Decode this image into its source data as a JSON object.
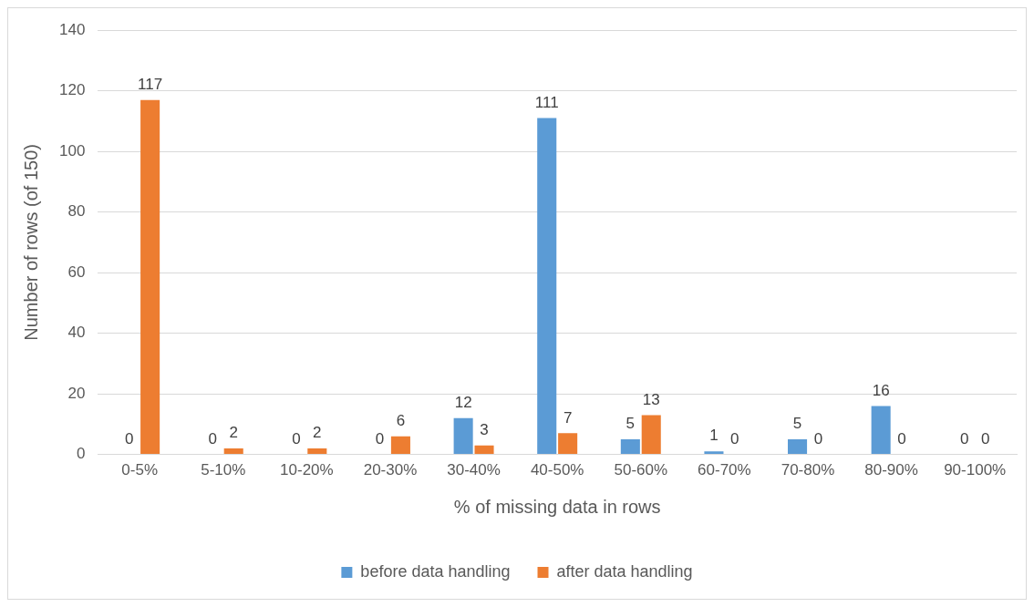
{
  "chart_data": {
    "type": "bar",
    "xlabel": "% of missing data in rows",
    "ylabel": "Number of rows (of 150)",
    "categories": [
      "0-5%",
      "5-10%",
      "10-20%",
      "20-30%",
      "30-40%",
      "40-50%",
      "50-60%",
      "60-70%",
      "70-80%",
      "80-90%",
      "90-100%"
    ],
    "series": [
      {
        "name": "before data handling",
        "color": "#5b9bd5",
        "values": [
          0,
          0,
          0,
          0,
          12,
          111,
          5,
          1,
          5,
          16,
          0
        ]
      },
      {
        "name": "after data handling",
        "color": "#ed7d31",
        "values": [
          117,
          2,
          2,
          6,
          3,
          7,
          13,
          0,
          0,
          0,
          0
        ]
      }
    ],
    "ylim": [
      0,
      140
    ],
    "yticks": [
      0,
      20,
      40,
      60,
      80,
      100,
      120,
      140
    ],
    "grid": "y",
    "legend": "bottom",
    "data_labels": true
  }
}
